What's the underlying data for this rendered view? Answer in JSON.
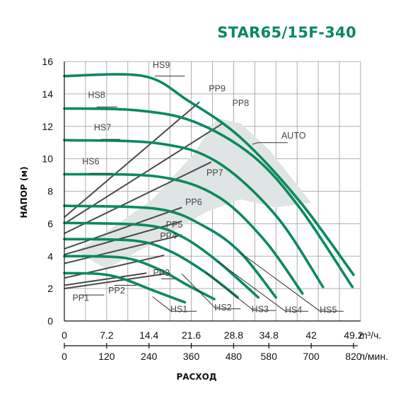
{
  "chart_data": {
    "type": "line",
    "title": "STAR65/15F-340",
    "ylabel": "НАПОР (м)",
    "xlabel": "РАСХОД",
    "xlim": [
      0,
      50.4
    ],
    "ylim": [
      0,
      16
    ],
    "x_ticks": [
      "0",
      "7.2",
      "14.4",
      "21.6",
      "28.8",
      "34.8",
      "42",
      "49.2"
    ],
    "x_tick_values": [
      0,
      7.2,
      14.4,
      21.6,
      28.8,
      34.8,
      42,
      49.2
    ],
    "x_unit": "m³/ч.",
    "x2_ticks": [
      "0",
      "120",
      "240",
      "360",
      "480",
      "580",
      "700",
      "820"
    ],
    "x2_unit": "л/мин.",
    "y_ticks": [
      "0",
      "2",
      "4",
      "6",
      "8",
      "10",
      "12",
      "14",
      "16"
    ],
    "grid": true,
    "colors": {
      "hs": "#0a8a5c",
      "pp": "#4a4a4a",
      "auto_zone": "#dfe4e4",
      "grid": "#9a9a9a",
      "title": "#0a8a5c"
    },
    "auto_zone": {
      "label": "AUTO",
      "polygon": [
        [
          7.2,
          3.2
        ],
        [
          12.0,
          4.2
        ],
        [
          18.0,
          5.4
        ],
        [
          24.0,
          6.7
        ],
        [
          30.0,
          7.5
        ],
        [
          36.0,
          7.0
        ],
        [
          42.0,
          7.3
        ],
        [
          35.0,
          10.5
        ],
        [
          30.0,
          12.2
        ],
        [
          26.0,
          12.5
        ],
        [
          22.0,
          10.3
        ],
        [
          15.0,
          7.5
        ],
        [
          6.0,
          5.2
        ],
        [
          2.0,
          4.3
        ]
      ]
    },
    "hs_series": [
      {
        "name": "HS1",
        "points": [
          [
            0,
            2.95
          ],
          [
            6,
            2.9
          ],
          [
            10,
            2.6
          ],
          [
            15,
            1.9
          ],
          [
            20.5,
            1.15
          ]
        ]
      },
      {
        "name": "HS2",
        "points": [
          [
            0,
            4.0
          ],
          [
            10,
            3.9
          ],
          [
            16,
            3.2
          ],
          [
            21,
            2.2
          ],
          [
            25.5,
            1.35
          ]
        ]
      },
      {
        "name": "HS3",
        "points": [
          [
            0,
            5.05
          ],
          [
            12,
            4.95
          ],
          [
            18,
            4.3
          ],
          [
            24,
            3.0
          ],
          [
            29.5,
            1.45
          ]
        ]
      },
      {
        "name": "HS4",
        "points": [
          [
            0,
            6.05
          ],
          [
            14,
            5.9
          ],
          [
            20,
            5.2
          ],
          [
            26,
            3.7
          ],
          [
            33.0,
            1.45
          ]
        ]
      },
      {
        "name": "HS5",
        "points": [
          [
            0,
            7.1
          ],
          [
            16,
            6.9
          ],
          [
            24,
            5.8
          ],
          [
            30,
            4.2
          ],
          [
            36.0,
            1.45
          ]
        ]
      },
      {
        "name": "HS6",
        "points": [
          [
            0,
            9.05
          ],
          [
            16,
            8.9
          ],
          [
            26,
            7.7
          ],
          [
            34,
            5.0
          ],
          [
            40.5,
            1.7
          ]
        ]
      },
      {
        "name": "HS7",
        "points": [
          [
            0,
            11.15
          ],
          [
            16,
            10.95
          ],
          [
            26,
            9.8
          ],
          [
            36,
            6.5
          ],
          [
            44.0,
            2.1
          ]
        ]
      },
      {
        "name": "HS8",
        "points": [
          [
            0,
            13.1
          ],
          [
            12,
            13.0
          ],
          [
            22,
            12.3
          ],
          [
            32,
            10.2
          ],
          [
            40,
            7.0
          ],
          [
            49.0,
            2.1
          ]
        ]
      },
      {
        "name": "HS9",
        "points": [
          [
            0,
            15.1
          ],
          [
            13.5,
            15.1
          ],
          [
            21,
            13.6
          ],
          [
            30,
            11.3
          ],
          [
            40,
            7.4
          ],
          [
            49.2,
            2.85
          ]
        ]
      }
    ],
    "pp_series": [
      {
        "name": "PP1",
        "points": [
          [
            0,
            2.0
          ],
          [
            18,
            2.95
          ]
        ]
      },
      {
        "name": "PP2",
        "points": [
          [
            0,
            2.2
          ],
          [
            14,
            2.95
          ]
        ]
      },
      {
        "name": "PP3",
        "points": [
          [
            0,
            2.65
          ],
          [
            17,
            4.05
          ]
        ]
      },
      {
        "name": "PP4",
        "points": [
          [
            0,
            3.55
          ],
          [
            20,
            5.3
          ]
        ]
      },
      {
        "name": "PP5",
        "points": [
          [
            0,
            4.1
          ],
          [
            20,
            6.15
          ]
        ]
      },
      {
        "name": "PP6",
        "points": [
          [
            0,
            4.45
          ],
          [
            20,
            7.0
          ]
        ]
      },
      {
        "name": "PP7",
        "points": [
          [
            0,
            5.4
          ],
          [
            25,
            9.8
          ]
        ]
      },
      {
        "name": "PP8",
        "points": [
          [
            0,
            6.0
          ],
          [
            27,
            12.2
          ]
        ]
      },
      {
        "name": "PP9",
        "points": [
          [
            0,
            6.4
          ],
          [
            23,
            13.5
          ]
        ]
      }
    ],
    "labels": [
      {
        "text": "HS9",
        "x": 16.5,
        "y": 15.6
      },
      {
        "text": "HS8",
        "x": 5.5,
        "y": 13.75
      },
      {
        "text": "HS7",
        "x": 6.5,
        "y": 11.75
      },
      {
        "text": "HS6",
        "x": 4.5,
        "y": 9.65
      },
      {
        "text": "HS1",
        "x": 19.5,
        "y": 0.55
      },
      {
        "text": "HS2",
        "x": 27.0,
        "y": 0.65
      },
      {
        "text": "HS3",
        "x": 33.3,
        "y": 0.55
      },
      {
        "text": "HS4",
        "x": 39.0,
        "y": 0.5
      },
      {
        "text": "HS5",
        "x": 44.9,
        "y": 0.5
      },
      {
        "text": "PP9",
        "x": 26.0,
        "y": 14.15
      },
      {
        "text": "PP8",
        "x": 30.0,
        "y": 13.25
      },
      {
        "text": "PP7",
        "x": 25.6,
        "y": 8.95
      },
      {
        "text": "PP6",
        "x": 22.0,
        "y": 7.15
      },
      {
        "text": "PP5",
        "x": 18.7,
        "y": 5.75
      },
      {
        "text": "PP4",
        "x": 17.7,
        "y": 5.05
      },
      {
        "text": "PP3",
        "x": 16.5,
        "y": 2.8
      },
      {
        "text": "PP2",
        "x": 8.9,
        "y": 1.7
      },
      {
        "text": "PP1",
        "x": 2.8,
        "y": 1.25
      },
      {
        "text": "AUTO",
        "x": 39.0,
        "y": 11.25
      }
    ],
    "label_leaders": [
      [
        [
          15.4,
          15.1
        ],
        [
          16.5,
          15.1
        ],
        [
          20.5,
          15.1
        ]
      ],
      [
        [
          5.5,
          13.2
        ],
        [
          9.0,
          13.2
        ]
      ],
      [
        [
          6.2,
          11.2
        ],
        [
          9.5,
          11.2
        ]
      ],
      [
        [
          4.3,
          9.1
        ],
        [
          8.2,
          9.1
        ]
      ],
      [
        [
          16.5,
          2.6
        ],
        [
          18.8,
          2.6
        ]
      ],
      [
        [
          8.5,
          2.2
        ],
        [
          12.3,
          2.2
        ]
      ],
      [
        [
          2.5,
          1.6
        ],
        [
          6.8,
          1.6
        ]
      ],
      [
        [
          33.0,
          11.0
        ],
        [
          38.0,
          11.0
        ]
      ],
      [
        [
          32.0,
          10.9
        ],
        [
          33.0,
          11.0
        ]
      ],
      [
        [
          15.0,
          1.5
        ],
        [
          18.2,
          0.6
        ],
        [
          22.5,
          0.6
        ]
      ],
      [
        [
          20.0,
          2.9
        ],
        [
          25.8,
          0.75
        ],
        [
          30.0,
          0.75
        ]
      ],
      [
        [
          24.0,
          3.0
        ],
        [
          32.2,
          0.65
        ],
        [
          36.0,
          0.65
        ]
      ],
      [
        [
          26.0,
          3.7
        ],
        [
          37.6,
          0.6
        ],
        [
          41.5,
          0.6
        ]
      ],
      [
        [
          30.0,
          4.2
        ],
        [
          43.5,
          0.6
        ],
        [
          47.5,
          0.6
        ]
      ]
    ]
  }
}
